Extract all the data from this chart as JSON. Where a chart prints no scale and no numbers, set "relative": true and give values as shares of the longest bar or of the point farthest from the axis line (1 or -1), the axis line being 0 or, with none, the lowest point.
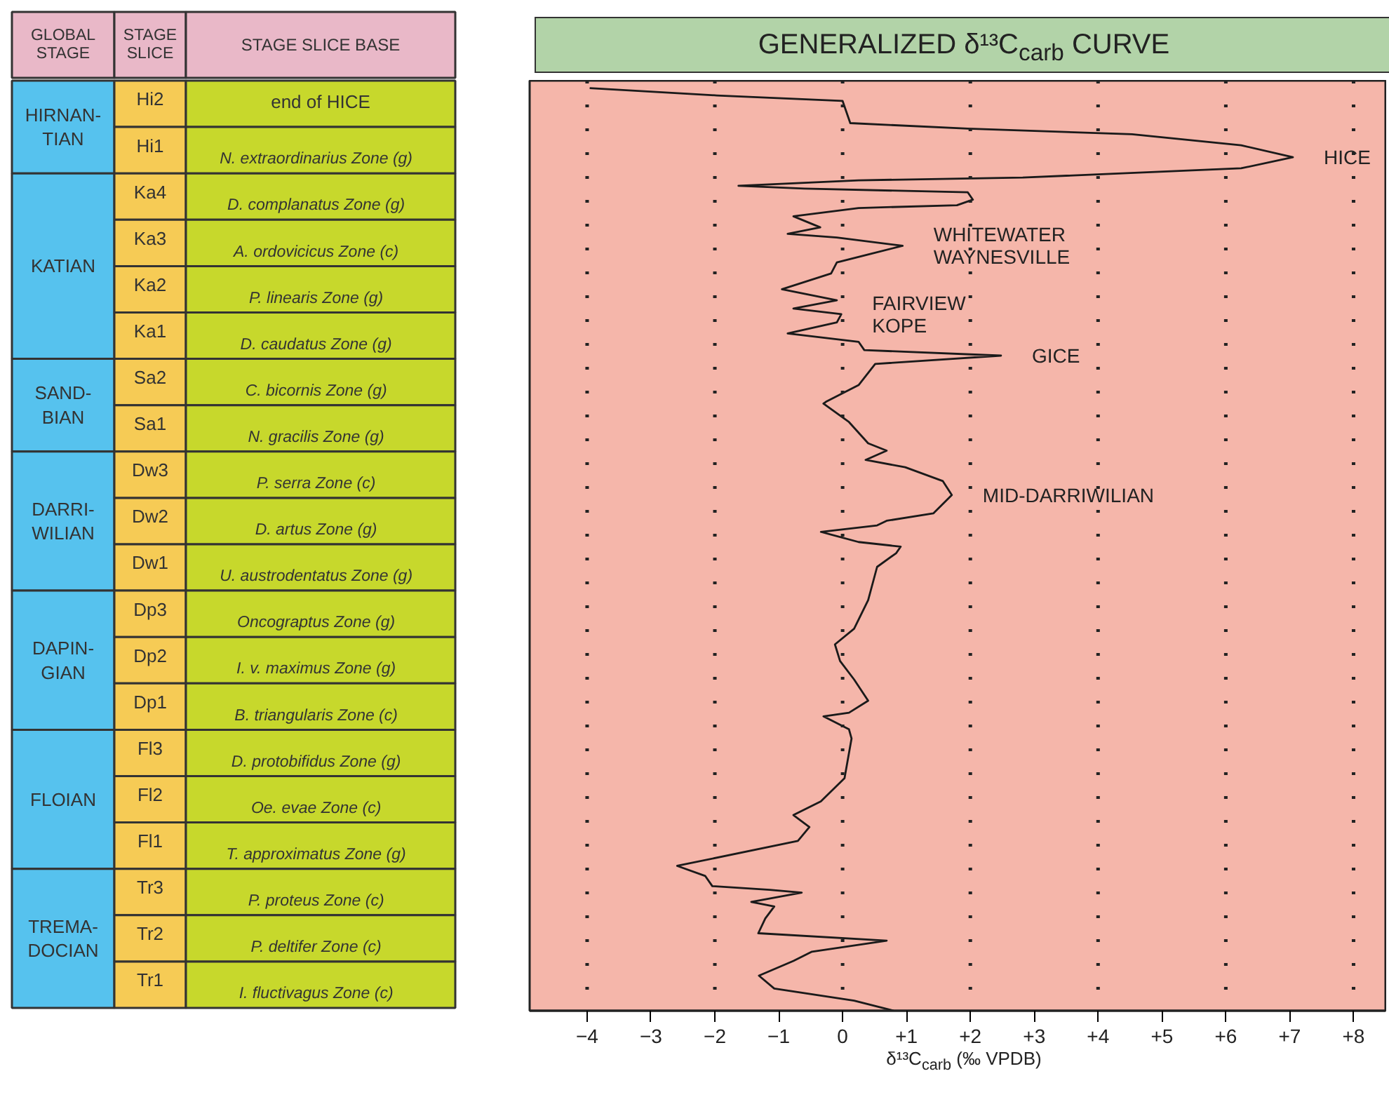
{
  "chart_data": [
    {
      "type": "other",
      "categories": [
        "GLOBAL\nSTAGE",
        "STAGE\nSLICE",
        "STAGE SLICE BASE"
      ],
      "y_categories": [
        "Hi2",
        "Hi1",
        "Ka4",
        "Ka3",
        "Ka2",
        "Ka1",
        "Sa2",
        "Sa1",
        "Dw3",
        "Dw2",
        "Dw1",
        "Dp3",
        "Dp2",
        "Dp1",
        "Fl3",
        "Fl2",
        "Fl1",
        "Tr3",
        "Tr2",
        "Tr1"
      ],
      "y2_categories": [
        "end of HICE",
        "N. extraordinarius  Zone  (g)",
        "D. complanatus  Zone  (g)",
        "A. ordovicicus  Zone  (c)",
        "P. linearis  Zone  (g)",
        "D. caudatus  Zone  (g)",
        "C. bicornis  Zone  (g)",
        "N. gracilis  Zone  (g)",
        "P. serra  Zone  (c)",
        "D. artus  Zone  (g)",
        "U. austrodentatus  Zone  (g)",
        "Oncograptus  Zone  (g)",
        "I. v. maximus  Zone  (g)",
        "B. triangularis  Zone  (c)",
        "D. protobifidus  Zone  (g)",
        "Oe. evae  Zone  (c)",
        "T. approximatus  Zone  (g)",
        "P. proteus  Zone  (c)",
        "P. deltifer  Zone  (c)",
        "I. fluctivagus  Zone  (c)"
      ],
      "annotations": [
        "HIRNAN-\nTIAN",
        "KATIAN",
        "SAND-\nBIAN",
        "DARRI-\nWILIAN",
        "DAPIN-\nGIAN",
        "FLOIAN",
        "TREMA-\nDOCIAN"
      ]
    },
    {
      "type": "line",
      "title": "GENERALIZED δ¹³C$_{carb}$ CURVE",
      "xlabel": "δ¹³C$_{carb}$ (‰  VPDB)",
      "relative": true,
      "xlim": [
        -4.9,
        8.5
      ],
      "xticks": [
        {
          "value": -4,
          "label": "−4"
        },
        {
          "value": -3,
          "label": "−3"
        },
        {
          "value": -2,
          "label": "−2"
        },
        {
          "value": -1,
          "label": "−1"
        },
        0,
        {
          "value": 1,
          "label": "+1"
        },
        {
          "value": 2,
          "label": "+2"
        },
        {
          "value": 3,
          "label": "+3"
        },
        {
          "value": 4,
          "label": "+4"
        },
        {
          "value": 5,
          "label": "+5"
        },
        {
          "value": 6,
          "label": "+6"
        },
        {
          "value": 7,
          "label": "+7"
        },
        {
          "value": 8,
          "label": "+8"
        }
      ],
      "grid": false,
      "marker": "none",
      "line_style": "solid",
      "x": [
        -3.96,
        -1.97,
        0.0,
        0.12,
        1.96,
        4.53,
        6.24,
        7.05,
        6.24,
        2.82,
        0.25,
        -1.63,
        -0.6,
        1.96,
        2.04,
        1.79,
        0.25,
        -0.77,
        -0.35,
        -0.86,
        -0.09,
        0.94,
        0.42,
        -0.09,
        -0.18,
        -0.95,
        -0.09,
        -0.77,
        -0.02,
        -0.09,
        -0.86,
        0.25,
        0.34,
        2.48,
        0.51,
        0.25,
        -0.26,
        -0.3,
        0.1,
        0.4,
        0.69,
        0.36,
        0.98,
        1.57,
        1.71,
        1.42,
        0.69,
        0.54,
        -0.34,
        0.25,
        0.91,
        0.84,
        0.54,
        0.4,
        0.18,
        -0.12,
        -0.04,
        0.18,
        0.4,
        0.1,
        -0.3,
        0.1,
        0.14,
        0.03,
        -0.34,
        -0.77,
        -0.52,
        -0.7,
        -2.59,
        -2.15,
        -2.04,
        -1.14,
        -0.64,
        -1.43,
        -1.07,
        -1.21,
        -1.32,
        0.69,
        -0.48,
        -0.77,
        -1.31,
        -1.07,
        0.18,
        0.8
      ],
      "series": [
        {
          "color": "#1a1a1a",
          "values": [
            1.0,
            0.992,
            0.986,
            0.962,
            0.956,
            0.95,
            0.938,
            0.925,
            0.913,
            0.903,
            0.9,
            0.894,
            0.891,
            0.887,
            0.879,
            0.873,
            0.87,
            0.861,
            0.849,
            0.842,
            0.838,
            0.829,
            0.82,
            0.811,
            0.799,
            0.782,
            0.77,
            0.761,
            0.755,
            0.746,
            0.734,
            0.725,
            0.716,
            0.71,
            0.701,
            0.678,
            0.66,
            0.658,
            0.638,
            0.615,
            0.607,
            0.597,
            0.589,
            0.574,
            0.559,
            0.539,
            0.531,
            0.526,
            0.519,
            0.508,
            0.503,
            0.496,
            0.481,
            0.445,
            0.414,
            0.397,
            0.379,
            0.359,
            0.336,
            0.323,
            0.319,
            0.305,
            0.295,
            0.252,
            0.227,
            0.212,
            0.199,
            0.184,
            0.157,
            0.146,
            0.135,
            0.131,
            0.128,
            0.118,
            0.113,
            0.1,
            0.084,
            0.076,
            0.064,
            0.054,
            0.038,
            0.024,
            0.011,
            0.0
          ]
        }
      ],
      "ref_lines": [
        {
          "axis": "x",
          "value": -4,
          "line_style": "dotted"
        },
        {
          "axis": "x",
          "value": -2,
          "line_style": "dotted"
        },
        {
          "axis": "x",
          "value": 0,
          "line_style": "dotted"
        },
        {
          "axis": "x",
          "value": 2,
          "line_style": "dotted"
        },
        {
          "axis": "x",
          "value": 4,
          "line_style": "dotted"
        },
        {
          "axis": "x",
          "value": 6,
          "line_style": "dotted"
        },
        {
          "axis": "x",
          "value": 8,
          "line_style": "dotted"
        }
      ],
      "annotations": [
        {
          "text": "HICE",
          "x": 7.05,
          "y": 0.925
        },
        {
          "text": "WHITEWATER\nWAYNESVILLE",
          "x": 0.94,
          "y": 0.829
        },
        {
          "text": "FAIRVIEW\nKOPE",
          "x": -0.02,
          "y": 0.755
        },
        {
          "text": "GICE",
          "x": 2.48,
          "y": 0.71
        },
        {
          "text": "MID-DARRIWILIAN",
          "x": 1.71,
          "y": 0.559
        }
      ]
    }
  ]
}
